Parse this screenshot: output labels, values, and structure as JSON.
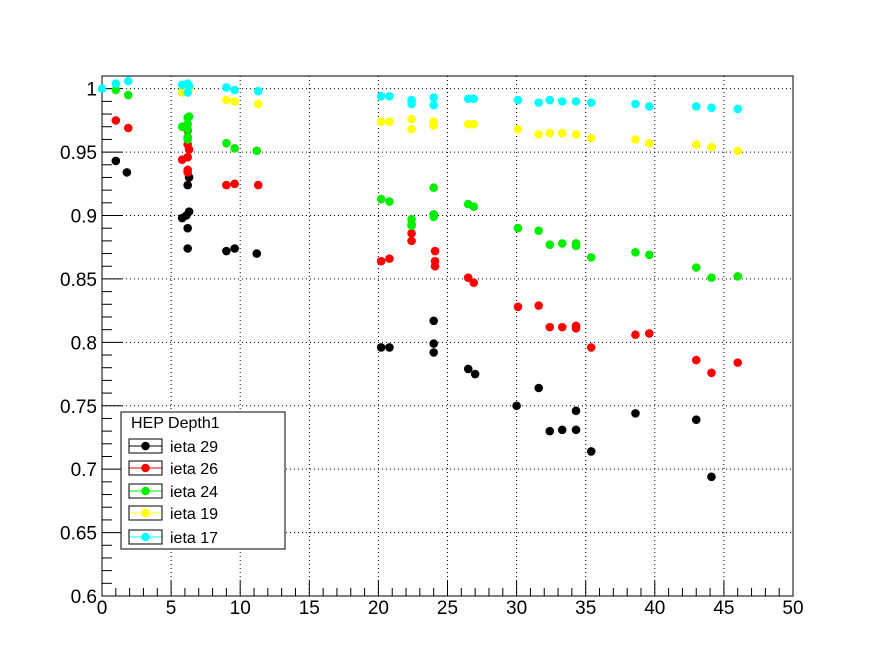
{
  "chart_data": {
    "type": "scatter",
    "xlim": [
      0,
      50
    ],
    "ylim": [
      0.6,
      1.01
    ],
    "x_ticks": [
      "0",
      "5",
      "10",
      "15",
      "20",
      "25",
      "30",
      "35",
      "40",
      "45",
      "50"
    ],
    "y_ticks": [
      "0.6",
      "0.65",
      "0.7",
      "0.75",
      "0.8",
      "0.85",
      "0.9",
      "0.95",
      "1"
    ],
    "grid": true,
    "legend_title": "HEP Depth1",
    "legend_placement": "bottom-left",
    "series": [
      {
        "name": "ieta 29",
        "color": "#000000",
        "points": [
          [
            1.0,
            0.943
          ],
          [
            1.8,
            0.934
          ],
          [
            5.8,
            0.898
          ],
          [
            6.1,
            0.9
          ],
          [
            6.3,
            0.903
          ],
          [
            6.2,
            0.89
          ],
          [
            6.2,
            0.874
          ],
          [
            6.2,
            0.924
          ],
          [
            6.3,
            0.93
          ],
          [
            9.0,
            0.872
          ],
          [
            9.6,
            0.874
          ],
          [
            11.2,
            0.87
          ],
          [
            20.2,
            0.796
          ],
          [
            20.8,
            0.796
          ],
          [
            24.0,
            0.817
          ],
          [
            24.0,
            0.799
          ],
          [
            24.0,
            0.792
          ],
          [
            26.5,
            0.779
          ],
          [
            27.0,
            0.775
          ],
          [
            30.0,
            0.75
          ],
          [
            31.6,
            0.764
          ],
          [
            32.4,
            0.73
          ],
          [
            33.3,
            0.731
          ],
          [
            34.3,
            0.731
          ],
          [
            34.3,
            0.746
          ],
          [
            35.4,
            0.714
          ],
          [
            38.6,
            0.744
          ],
          [
            43.0,
            0.739
          ],
          [
            44.1,
            0.694
          ]
        ]
      },
      {
        "name": "ieta 26",
        "color": "#ff0000",
        "points": [
          [
            1.0,
            0.975
          ],
          [
            1.9,
            0.969
          ],
          [
            5.8,
            0.944
          ],
          [
            6.2,
            0.946
          ],
          [
            6.2,
            0.936
          ],
          [
            6.2,
            0.934
          ],
          [
            6.2,
            0.956
          ],
          [
            6.3,
            0.952
          ],
          [
            6.2,
            0.967
          ],
          [
            9.0,
            0.924
          ],
          [
            9.6,
            0.925
          ],
          [
            11.3,
            0.924
          ],
          [
            20.2,
            0.864
          ],
          [
            20.8,
            0.866
          ],
          [
            22.4,
            0.88
          ],
          [
            22.4,
            0.886
          ],
          [
            24.1,
            0.872
          ],
          [
            24.1,
            0.864
          ],
          [
            24.1,
            0.86
          ],
          [
            26.5,
            0.851
          ],
          [
            26.9,
            0.847
          ],
          [
            30.1,
            0.828
          ],
          [
            31.6,
            0.829
          ],
          [
            32.4,
            0.812
          ],
          [
            33.3,
            0.812
          ],
          [
            34.3,
            0.813
          ],
          [
            34.3,
            0.811
          ],
          [
            35.4,
            0.796
          ],
          [
            38.6,
            0.806
          ],
          [
            39.6,
            0.807
          ],
          [
            43.0,
            0.786
          ],
          [
            44.1,
            0.776
          ],
          [
            46.0,
            0.784
          ]
        ]
      },
      {
        "name": "ieta 24",
        "color": "#00ee00",
        "points": [
          [
            1.0,
            0.999
          ],
          [
            1.9,
            0.995
          ],
          [
            5.8,
            0.97
          ],
          [
            6.2,
            0.968
          ],
          [
            6.2,
            0.977
          ],
          [
            6.2,
            0.972
          ],
          [
            6.2,
            0.962
          ],
          [
            6.3,
            0.978
          ],
          [
            6.2,
            0.96
          ],
          [
            9.0,
            0.957
          ],
          [
            9.6,
            0.953
          ],
          [
            11.2,
            0.951
          ],
          [
            20.2,
            0.913
          ],
          [
            20.8,
            0.911
          ],
          [
            22.4,
            0.897
          ],
          [
            22.4,
            0.893
          ],
          [
            22.4,
            0.892
          ],
          [
            24.0,
            0.922
          ],
          [
            24.0,
            0.901
          ],
          [
            24.0,
            0.899
          ],
          [
            26.5,
            0.909
          ],
          [
            26.9,
            0.907
          ],
          [
            30.1,
            0.89
          ],
          [
            31.6,
            0.888
          ],
          [
            32.4,
            0.877
          ],
          [
            33.3,
            0.878
          ],
          [
            34.3,
            0.878
          ],
          [
            34.3,
            0.876
          ],
          [
            35.4,
            0.867
          ],
          [
            38.6,
            0.871
          ],
          [
            39.6,
            0.869
          ],
          [
            43.0,
            0.859
          ],
          [
            44.1,
            0.851
          ],
          [
            46.0,
            0.852
          ]
        ]
      },
      {
        "name": "ieta 19",
        "color": "#ffff00",
        "points": [
          [
            5.8,
            0.997
          ],
          [
            6.2,
            0.999
          ],
          [
            6.3,
            1.0
          ],
          [
            9.0,
            0.991
          ],
          [
            9.6,
            0.99
          ],
          [
            11.3,
            0.988
          ],
          [
            20.2,
            0.974
          ],
          [
            20.8,
            0.974
          ],
          [
            22.4,
            0.976
          ],
          [
            22.4,
            0.968
          ],
          [
            24.0,
            0.974
          ],
          [
            24.0,
            0.971
          ],
          [
            26.5,
            0.972
          ],
          [
            26.9,
            0.972
          ],
          [
            30.1,
            0.968
          ],
          [
            31.6,
            0.964
          ],
          [
            32.4,
            0.965
          ],
          [
            33.3,
            0.965
          ],
          [
            34.3,
            0.964
          ],
          [
            35.4,
            0.961
          ],
          [
            38.6,
            0.96
          ],
          [
            39.6,
            0.957
          ],
          [
            43.0,
            0.956
          ],
          [
            44.1,
            0.954
          ],
          [
            46.0,
            0.951
          ]
        ]
      },
      {
        "name": "ieta 17",
        "color": "#00ffff",
        "points": [
          [
            0.0,
            1.0
          ],
          [
            1.0,
            1.004
          ],
          [
            1.9,
            1.006
          ],
          [
            5.8,
            1.003
          ],
          [
            6.2,
            1.004
          ],
          [
            6.3,
            1.002
          ],
          [
            6.2,
            0.997
          ],
          [
            9.0,
            1.001
          ],
          [
            9.6,
            0.999
          ],
          [
            11.3,
            0.998
          ],
          [
            20.2,
            0.994
          ],
          [
            20.8,
            0.994
          ],
          [
            22.4,
            0.991
          ],
          [
            22.4,
            0.988
          ],
          [
            24.0,
            0.993
          ],
          [
            24.0,
            0.987
          ],
          [
            26.5,
            0.992
          ],
          [
            26.9,
            0.992
          ],
          [
            30.1,
            0.991
          ],
          [
            31.6,
            0.989
          ],
          [
            32.4,
            0.991
          ],
          [
            33.3,
            0.99
          ],
          [
            34.3,
            0.99
          ],
          [
            35.4,
            0.989
          ],
          [
            38.6,
            0.988
          ],
          [
            39.6,
            0.986
          ],
          [
            43.0,
            0.986
          ],
          [
            44.1,
            0.985
          ],
          [
            46.0,
            0.984
          ]
        ]
      }
    ]
  }
}
